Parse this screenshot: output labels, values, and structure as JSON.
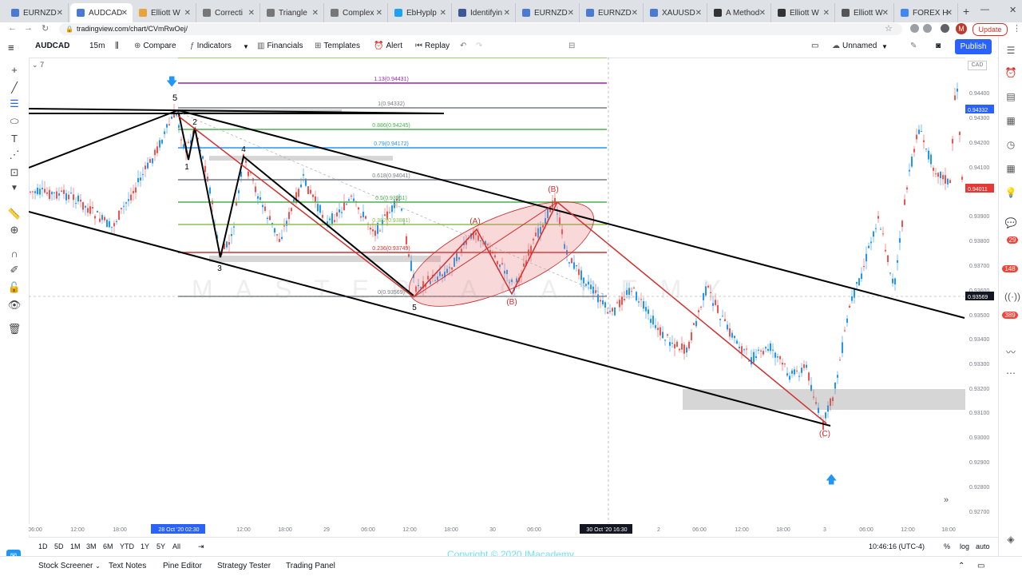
{
  "browser": {
    "tabs": [
      "EURNZD",
      "AUDCAD",
      "Elliott W",
      "Correcti",
      "Triangle",
      "Complex",
      "EbHyplp",
      "Identifyin",
      "EURNZD",
      "EURNZD",
      "XAUUSD",
      "A Method",
      "Elliott W",
      "Elliott W",
      "FOREX H"
    ],
    "active_tab": 1,
    "url": "tradingview.com/chart/CVmRwOej/",
    "update_label": "Update",
    "avatar_letter": "M"
  },
  "toolbar": {
    "symbol": "AUDCAD",
    "interval": "15m",
    "compare": "Compare",
    "indicators": "Indicators",
    "financials": "Financials",
    "templates": "Templates",
    "alert": "Alert",
    "replay": "Replay",
    "layout_name": "Unnamed",
    "publish": "Publish"
  },
  "chart": {
    "legend_count": "7",
    "symbol_box": "CAD",
    "watermark": "MASTER ACADEMY",
    "fib_levels": [
      {
        "label": "1.13(0.94431)",
        "color": "#9c27b0"
      },
      {
        "label": "1(0.94332)",
        "color": "#787b86"
      },
      {
        "label": "0.886(0.94245)",
        "color": "#4caf50"
      },
      {
        "label": "0.79(0.94172)",
        "color": "#2196f3"
      },
      {
        "label": "0.618(0.94041)",
        "color": "#787b86"
      },
      {
        "label": "0.5(0.93951)",
        "color": "#4caf50"
      },
      {
        "label": "0.382(0.93861)",
        "color": "#8bc34a"
      },
      {
        "label": "0.236(0.93749)",
        "color": "#d32f2f"
      },
      {
        "label": "0(0.93569)",
        "color": "#787b86"
      }
    ],
    "wave_labels": [
      "5",
      "2",
      "1",
      "4",
      "3",
      "5",
      "(A)",
      "(B)",
      "(B)",
      "(C)"
    ],
    "price_axis": [
      "0.94400",
      "0.94300",
      "0.94200",
      "0.94100",
      "0.93900",
      "0.93800",
      "0.93700",
      "0.93600",
      "0.93500",
      "0.93400",
      "0.93300",
      "0.93200",
      "0.93100",
      "0.93000",
      "0.92900",
      "0.92800",
      "0.92700"
    ],
    "price_tags": [
      {
        "label": "0.94332",
        "color": "#2962ff"
      },
      {
        "label": "0.94011",
        "color": "#e53935"
      },
      {
        "label": "0.93569",
        "color": "#131722"
      }
    ],
    "time_axis": [
      "06:00",
      "12:00",
      "18:00",
      "28 Oct '20  02:30",
      "12:00",
      "18:00",
      "29",
      "06:00",
      "12:00",
      "18:00",
      "30",
      "06:00",
      "30 Oct '20  16:30",
      "2",
      "06:00",
      "12:00",
      "18:00",
      "3",
      "06:00",
      "12:00",
      "18:00"
    ]
  },
  "bottom": {
    "ranges": [
      "1D",
      "5D",
      "1M",
      "3M",
      "6M",
      "YTD",
      "1Y",
      "5Y",
      "All"
    ],
    "clock": "10:46:16 (UTC-4)",
    "percent": "%",
    "log": "log",
    "auto": "auto"
  },
  "footer": {
    "items": [
      "Stock Screener",
      "Text Notes",
      "Pine Editor",
      "Strategy Tester",
      "Trading Panel"
    ],
    "copyright": "Copyright © 2020 IMacademy"
  },
  "side_badges": [
    "29",
    "148",
    "389"
  ]
}
